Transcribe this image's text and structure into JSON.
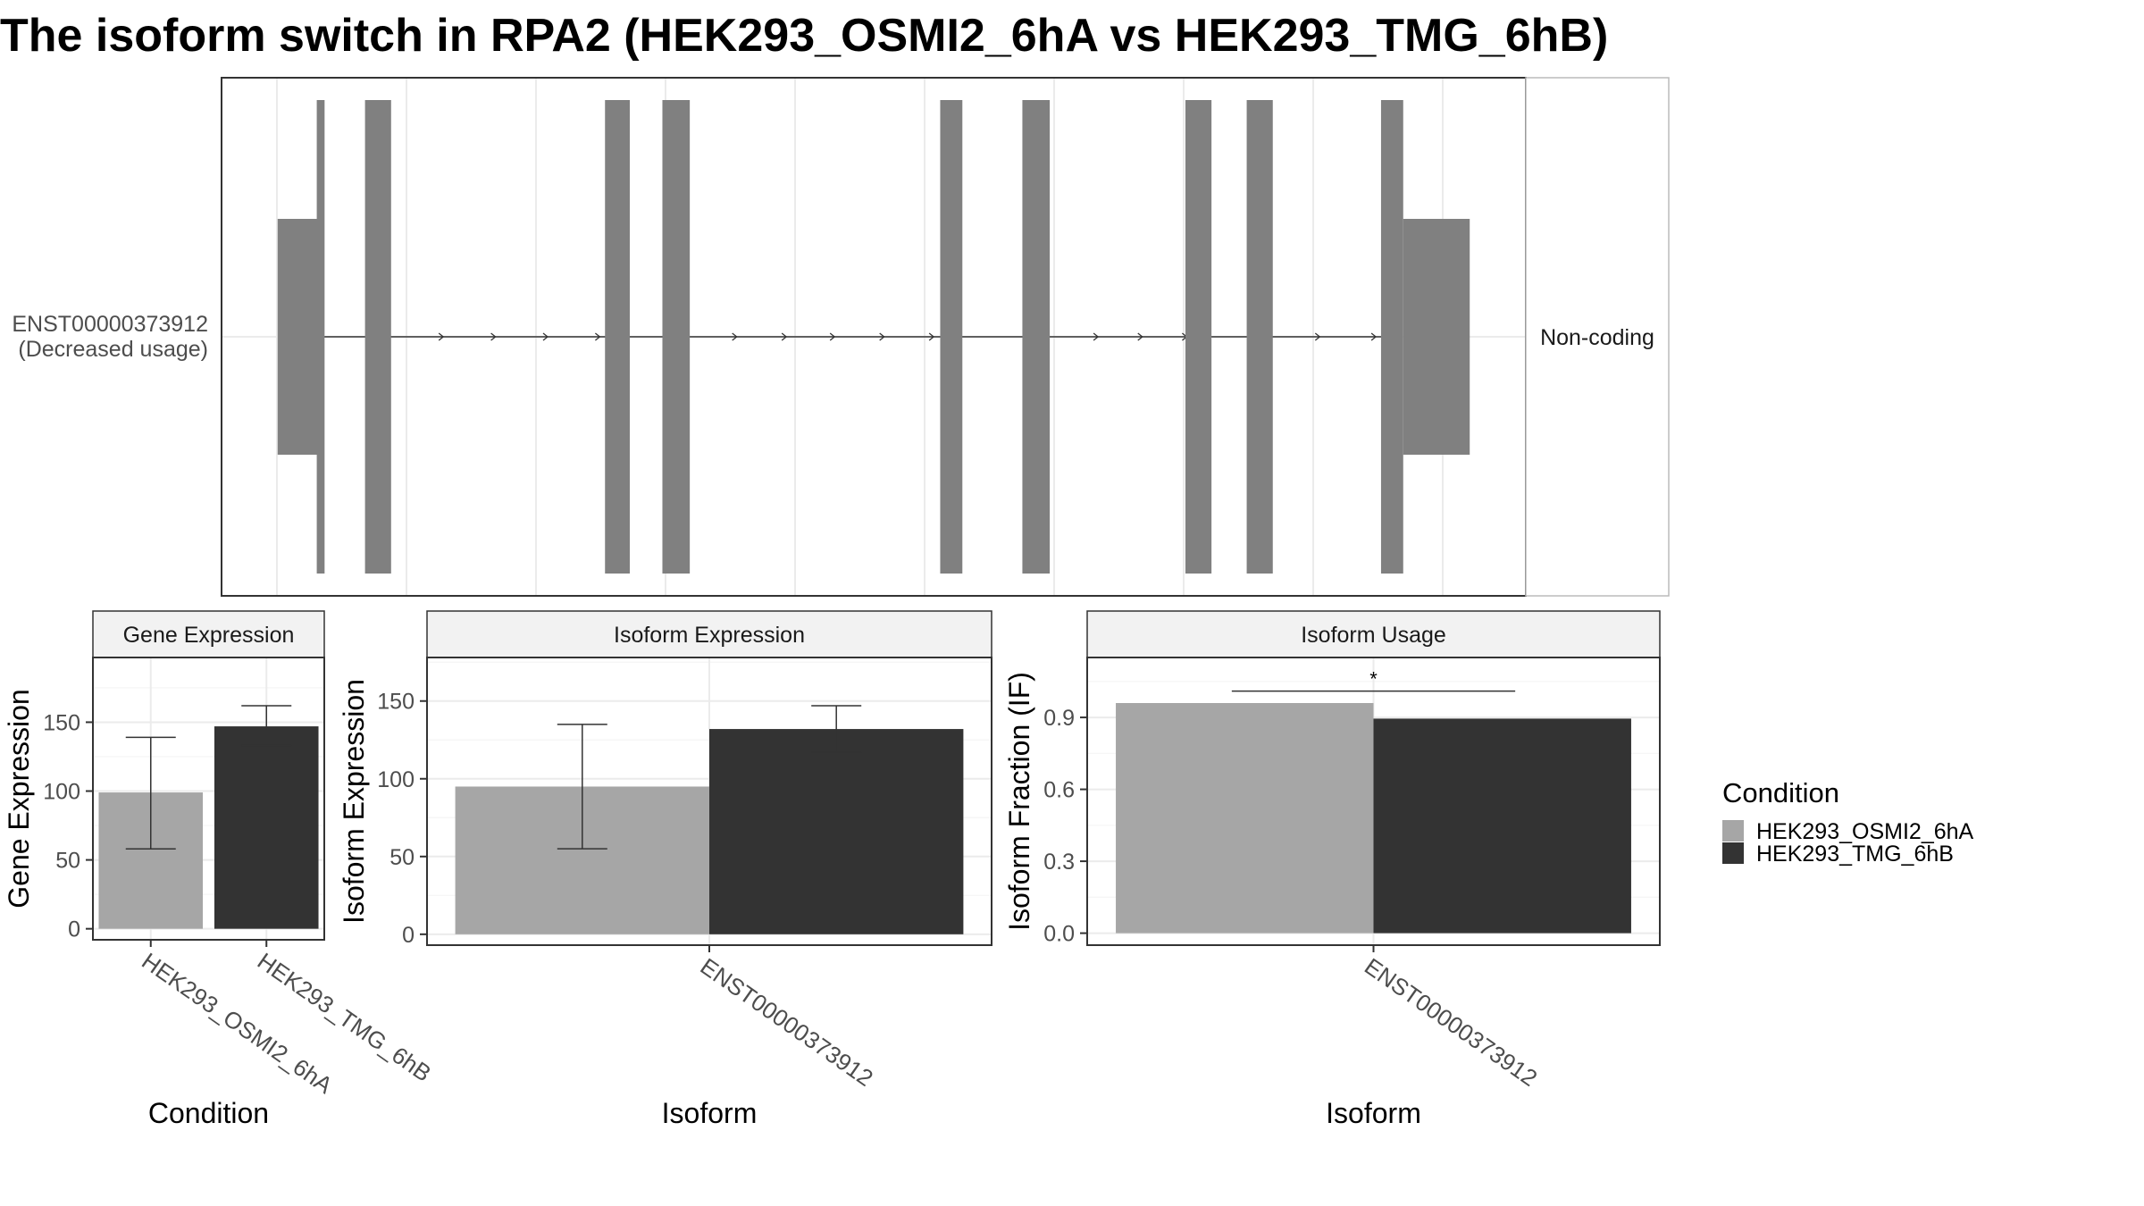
{
  "title": "The isoform switch in RPA2 (HEK293_OSMI2_6hA vs HEK293_TMG_6hB)",
  "colors": {
    "exon": "#808080",
    "cond_a": "#a6a6a6",
    "cond_b": "#333333",
    "grid": "#ebebeb",
    "panel_border": "#333333",
    "strip_border": "#333333",
    "axis_text": "#4d4d4d"
  },
  "chart_data": [
    {
      "type": "gene-structure",
      "transcript_label": [
        "ENST00000373912",
        "(Decreased usage)"
      ],
      "coding_label": "Non-coding",
      "xlim": [
        0,
        100
      ],
      "intron_span": [
        7.7,
        89.2
      ],
      "exons": [
        {
          "start": 4.3,
          "end": 7.7,
          "height": "half"
        },
        {
          "start": 7.3,
          "end": 7.9,
          "height": "full"
        },
        {
          "start": 11.0,
          "end": 13.0,
          "height": "full"
        },
        {
          "start": 29.4,
          "end": 31.3,
          "height": "full"
        },
        {
          "start": 33.8,
          "end": 35.9,
          "height": "full"
        },
        {
          "start": 55.1,
          "end": 56.8,
          "height": "full"
        },
        {
          "start": 61.4,
          "end": 63.5,
          "height": "full"
        },
        {
          "start": 73.9,
          "end": 75.9,
          "height": "full"
        },
        {
          "start": 78.6,
          "end": 80.6,
          "height": "full"
        },
        {
          "start": 88.9,
          "end": 90.6,
          "height": "full"
        },
        {
          "start": 90.6,
          "end": 95.7,
          "height": "half"
        }
      ],
      "arrows": [
        17.0,
        21.0,
        25.0,
        29.0,
        39.5,
        43.3,
        47.0,
        50.8,
        54.6,
        67.2,
        70.6,
        74.0,
        84.2,
        88.5
      ]
    },
    {
      "type": "bar",
      "strip": "Gene Expression",
      "xlabel": "Condition",
      "ylabel": "Gene Expression",
      "categories": [
        "HEK293_OSMI2_6hA",
        "HEK293_TMG_6hB"
      ],
      "values": [
        99,
        147
      ],
      "error_low": [
        58,
        133
      ],
      "error_high": [
        139,
        162
      ],
      "ylim": [
        -8,
        197
      ],
      "yticks": [
        0,
        50,
        100,
        150
      ]
    },
    {
      "type": "bar",
      "strip": "Isoform Expression",
      "xlabel": "Isoform",
      "ylabel": "Isoform Expression",
      "categories": [
        "ENST00000373912"
      ],
      "series": [
        {
          "name": "HEK293_OSMI2_6hA",
          "values": [
            95
          ],
          "error_low": [
            55
          ],
          "error_high": [
            135
          ]
        },
        {
          "name": "HEK293_TMG_6hB",
          "values": [
            132
          ],
          "error_low": [
            117
          ],
          "error_high": [
            147
          ]
        }
      ],
      "ylim": [
        -7,
        178
      ],
      "yticks": [
        0,
        50,
        100,
        150
      ]
    },
    {
      "type": "bar",
      "strip": "Isoform Usage",
      "xlabel": "Isoform",
      "ylabel": "Isoform Fraction (IF)",
      "categories": [
        "ENST00000373912"
      ],
      "series": [
        {
          "name": "HEK293_OSMI2_6hA",
          "values": [
            0.96
          ]
        },
        {
          "name": "HEK293_TMG_6hB",
          "values": [
            0.895
          ]
        }
      ],
      "significance": "*",
      "significance_y": 1.01,
      "ylim": [
        -0.05,
        1.15
      ],
      "yticks": [
        0.0,
        0.3,
        0.6,
        0.9
      ],
      "ytick_labels": [
        "0.0",
        "0.3",
        "0.6",
        "0.9"
      ]
    }
  ],
  "legend": {
    "title": "Condition",
    "position": "right",
    "items": [
      {
        "label": "HEK293_OSMI2_6hA",
        "color": "#a6a6a6"
      },
      {
        "label": "HEK293_TMG_6hB",
        "color": "#333333"
      }
    ]
  }
}
